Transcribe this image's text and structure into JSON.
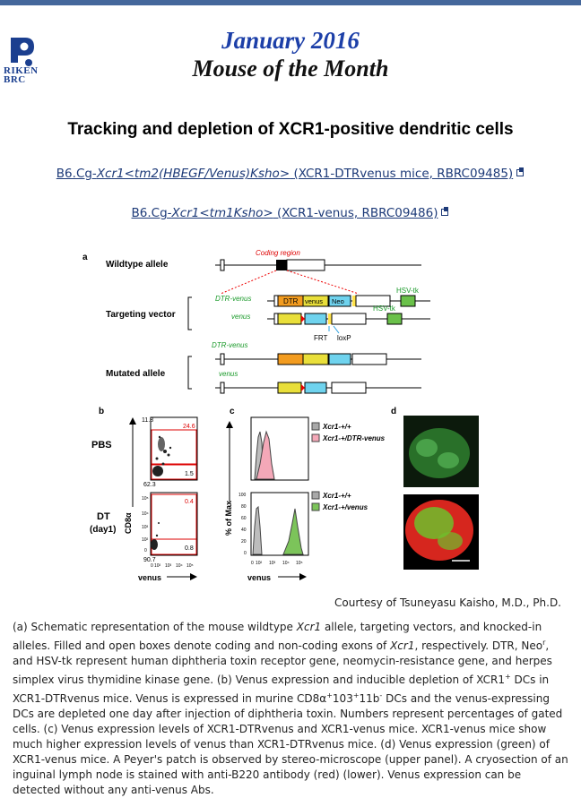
{
  "header": {
    "logo_text_line1": "RIKEN",
    "logo_text_line2": "BRC",
    "date": "January 2016",
    "title": "Mouse of the Month"
  },
  "article": {
    "title": "Tracking and depletion of XCR1-positive dendritic cells",
    "strains": [
      {
        "prefix": "B6.Cg-",
        "allele": "Xcr1<tm2(HBEGF/Venus)Ksho>",
        "description": "(XCR1-DTRvenus mice, RBRC09485)"
      },
      {
        "prefix": "B6.Cg-",
        "allele": "Xcr1<tm1Ksho>",
        "description": "(XCR1-venus, RBRC09486)"
      }
    ]
  },
  "figure": {
    "panel_a": {
      "letter": "a",
      "rows": [
        "Wildtype allele",
        "Targeting vector",
        "Mutated allele"
      ],
      "coding_region": "Coding region",
      "tags": {
        "dtr_venus": "DTR-venus",
        "venus": "venus"
      },
      "boxes": {
        "dtr": "DTR",
        "venus": "venus",
        "neo": "Neo",
        "neo_sup": "r",
        "hsvtk": "HSV-tk"
      },
      "site_labels": {
        "frt": "FRT",
        "loxp": "loxP"
      }
    },
    "panel_b": {
      "letter": "b",
      "row_labels": [
        "PBS",
        "DT",
        "(day1)"
      ],
      "pbs_values": {
        "top_left": "11.8",
        "top_right": "24.6",
        "bottom_right": "1.5",
        "bottom_left": "62.3"
      },
      "dt_values": {
        "top_right": "0.4",
        "bottom_right": "0.8",
        "bottom_left": "90.7"
      },
      "y_axis": "CD8α",
      "x_axis": "venus",
      "x_ticks": [
        "0",
        "10²",
        "10³",
        "10⁴",
        "10⁵"
      ],
      "y_ticks": [
        "10⁵",
        "10⁴",
        "10³",
        "10²",
        "0"
      ]
    },
    "panel_c": {
      "letter": "c",
      "legend_top": [
        "Xcr1-+/+",
        "Xcr1-+/DTR-venus"
      ],
      "legend_bottom": [
        "Xcr1-+/+",
        "Xcr1-+/venus"
      ],
      "y_axis": "% of Max",
      "x_axis": "venus",
      "y_ticks": [
        "100",
        "80",
        "60",
        "40",
        "20",
        "0"
      ],
      "x_ticks": [
        "0",
        "10²",
        "10³",
        "10⁴",
        "10⁵"
      ],
      "colors": {
        "wildtype": "#a8a8a8",
        "dtr_venus": "#f4a8b8",
        "venus": "#7cc45a"
      }
    },
    "panel_d": {
      "letter": "d"
    }
  },
  "courtesy": "Courtesy of Tsuneyasu Kaisho, M.D., Ph.D.",
  "caption": {
    "a1": "(a) Schematic representation of the mouse wildtype ",
    "a_gene": "Xcr1",
    "a2": " allele, targeting vectors, and knocked-in alleles. Filled and open boxes denote coding and non-coding exons of ",
    "a_gene2": "Xcr1",
    "a3": ", respectively. DTR, Neo",
    "a_sup": "r",
    "a4": ", and HSV-tk represent human diphtheria toxin receptor gene, neomycin-resistance gene, and herpes simplex virus thymidine kinase gene. (b) Venus expression and inducible depletion of XCR1",
    "b_sup": "+",
    "b1": " DCs in XCR1-DTRvenus mice. Venus is expressed in murine CD8α",
    "b_sup2": "+",
    "b2": "103",
    "b_sup3": "+",
    "b3": "11b",
    "b_sup4": "-",
    "b4": " DCs and the venus-expressing DCs are depleted one day after injection of diphtheria toxin. Numbers represent percentages of gated cells. (c) Venus expression levels of XCR1-DTRvenus and XCR1-venus mice. XCR1-venus mice show much higher expression levels of venus than XCR1-DTRvenus mice. (d) Venus expression (green) of XCR1-venus mice. A Peyer's patch is observed by stereo-microscope (upper panel). A cryosection of an inguinal lymph node is stained with anti-B220 antibody (red) (lower). Venus expression can be detected without any anti-venus Abs."
  }
}
